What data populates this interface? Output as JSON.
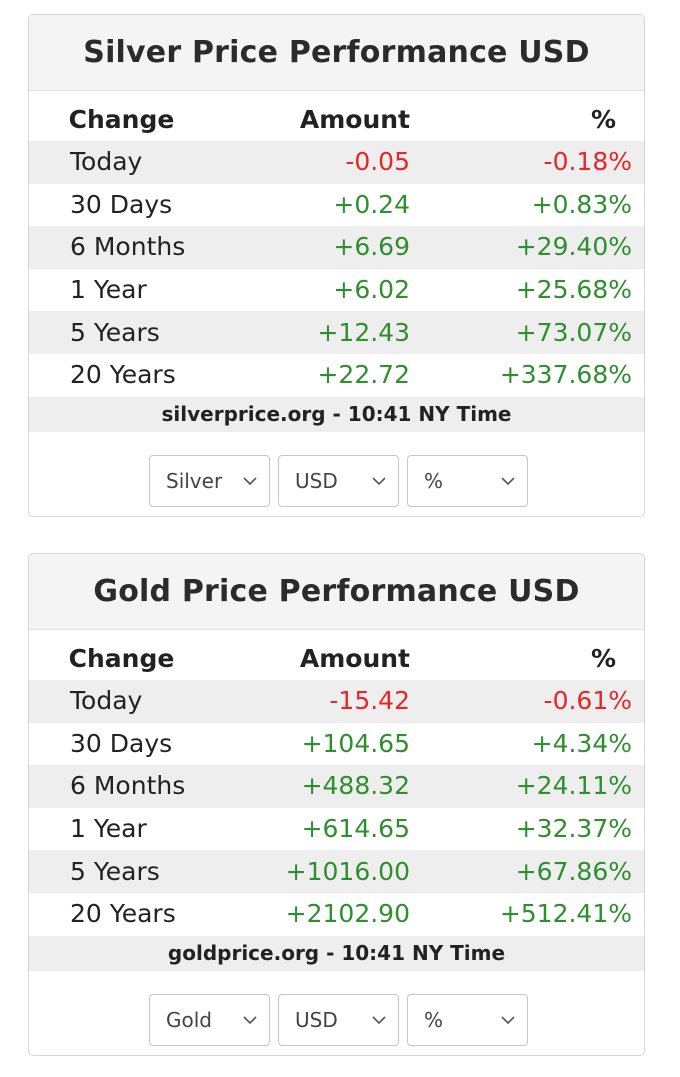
{
  "silver": {
    "title": "Silver Price Performance USD",
    "headers": {
      "change": "Change",
      "amount": "Amount",
      "pct": "%"
    },
    "rows": [
      {
        "period": "Today",
        "amount": "-0.05",
        "pct": "-0.18%"
      },
      {
        "period": "30 Days",
        "amount": "+0.24",
        "pct": "+0.83%"
      },
      {
        "period": "6 Months",
        "amount": "+6.69",
        "pct": "+29.40%"
      },
      {
        "period": "1 Year",
        "amount": "+6.02",
        "pct": "+25.68%"
      },
      {
        "period": "5 Years",
        "amount": "+12.43",
        "pct": "+73.07%"
      },
      {
        "period": "20 Years",
        "amount": "+22.72",
        "pct": "+337.68%"
      }
    ],
    "source": "silverprice.org - 10:41 NY Time",
    "selectors": {
      "metal": "Silver",
      "currency": "USD",
      "unit": "%"
    }
  },
  "gold": {
    "title": "Gold Price Performance USD",
    "headers": {
      "change": "Change",
      "amount": "Amount",
      "pct": "%"
    },
    "rows": [
      {
        "period": "Today",
        "amount": "-15.42",
        "pct": "-0.61%"
      },
      {
        "period": "30 Days",
        "amount": "+104.65",
        "pct": "+4.34%"
      },
      {
        "period": "6 Months",
        "amount": "+488.32",
        "pct": "+24.11%"
      },
      {
        "period": "1 Year",
        "amount": "+614.65",
        "pct": "+32.37%"
      },
      {
        "period": "5 Years",
        "amount": "+1016.00",
        "pct": "+67.86%"
      },
      {
        "period": "20 Years",
        "amount": "+2102.90",
        "pct": "+512.41%"
      }
    ],
    "source": "goldprice.org - 10:41 NY Time",
    "selectors": {
      "metal": "Gold",
      "currency": "USD",
      "unit": "%"
    }
  },
  "colors": {
    "negative": "#e8262a",
    "positive": "#2f8f2f",
    "shaded_row": "#eeeeee",
    "title_bg": "#f4f4f4"
  },
  "icons": {
    "select_arrow": "chevron-down-icon"
  }
}
